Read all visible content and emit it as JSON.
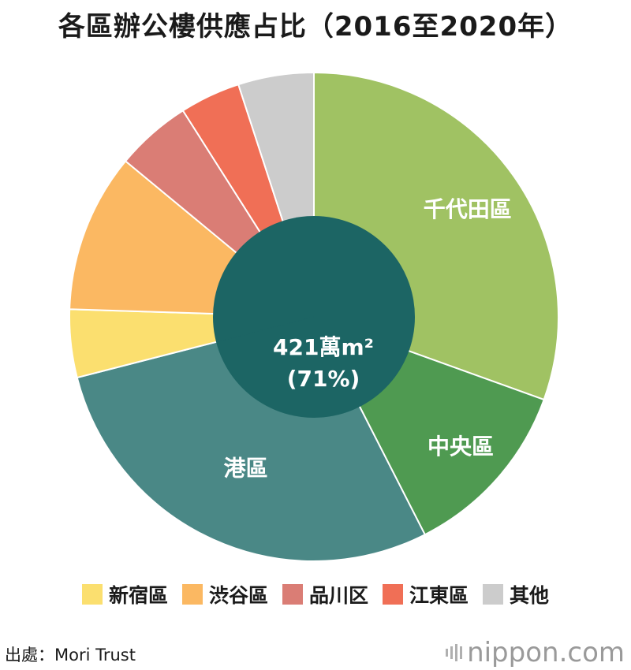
{
  "title": "各區辦公樓供應占比（2016至2020年）",
  "chart_data": {
    "type": "pie",
    "title": "各區辦公樓供應占比（2016至2020年）",
    "center_label_line1": "421萬m²",
    "center_label_line2": "(71%)",
    "slices": [
      {
        "name": "千代田區",
        "value": 30.5,
        "color": "#a0c263",
        "label_shown": true
      },
      {
        "name": "中央區",
        "value": 12.0,
        "color": "#4f9a51",
        "label_shown": true
      },
      {
        "name": "港區",
        "value": 28.5,
        "color": "#4a8886",
        "label_shown": true
      },
      {
        "name": "新宿區",
        "value": 4.5,
        "color": "#fbdf6f",
        "label_shown": false
      },
      {
        "name": "渋谷區",
        "value": 10.5,
        "color": "#fbb862",
        "label_shown": false
      },
      {
        "name": "品川区",
        "value": 5.0,
        "color": "#da7d75",
        "label_shown": false
      },
      {
        "name": "江東區",
        "value": 4.0,
        "color": "#f06f56",
        "label_shown": false
      },
      {
        "name": "其他",
        "value": 5.0,
        "color": "#cccccc",
        "label_shown": false
      }
    ],
    "legend_placement": "bottom",
    "inner_group_color": "#1c6564"
  },
  "legend": [
    {
      "label": "新宿區",
      "color": "#fbdf6f"
    },
    {
      "label": "渋谷區",
      "color": "#fbb862"
    },
    {
      "label": "品川区",
      "color": "#da7d75"
    },
    {
      "label": "江東區",
      "color": "#f06f56"
    },
    {
      "label": "其他",
      "color": "#cccccc"
    }
  ],
  "source": "出處：Mori Trust",
  "brand": "nippon.com"
}
